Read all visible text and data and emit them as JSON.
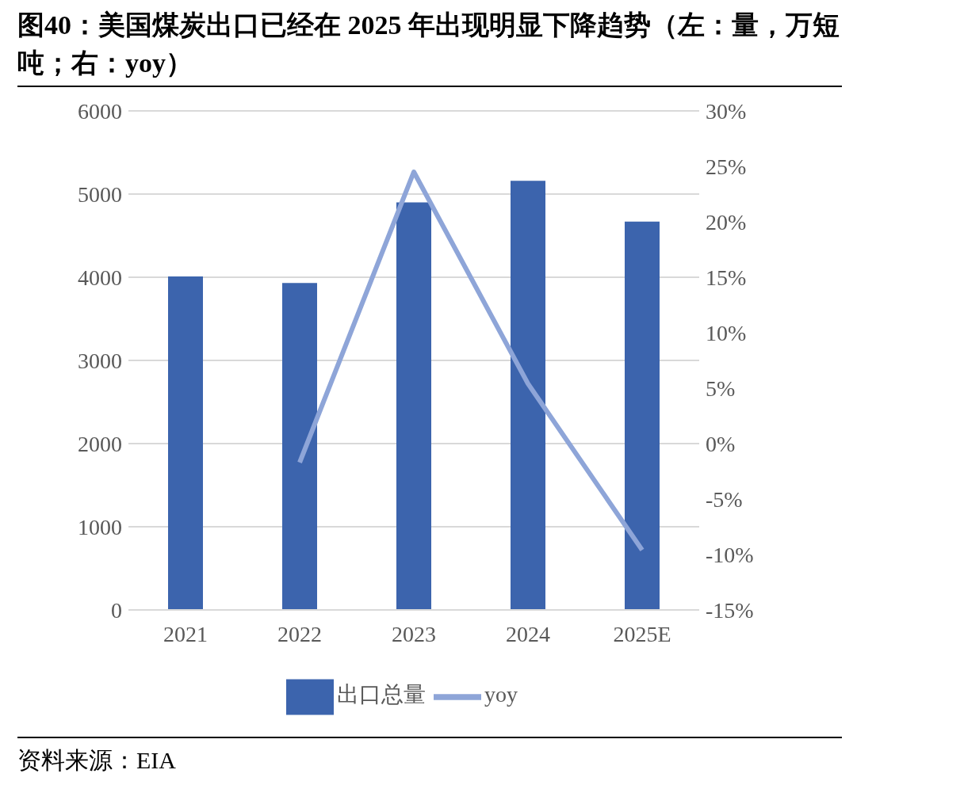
{
  "chart_data": {
    "type": "bar",
    "title": "图40：美国煤炭出口已经在 2025 年出现明显下降趋势（左：量，万短吨；右：yoy）",
    "categories": [
      "2021",
      "2022",
      "2023",
      "2024",
      "2025E"
    ],
    "series": [
      {
        "name": "出口总量",
        "color": "#3c64ad",
        "values": [
          4010,
          3930,
          4900,
          5160,
          4670
        ]
      },
      {
        "type": "line",
        "name": "yoy",
        "color": "#8ea5d8",
        "axis": "y2",
        "values": [
          null,
          -1.7,
          24.5,
          5.4,
          -9.6
        ]
      }
    ],
    "ylim": [
      0,
      6000
    ],
    "yticks": [
      0,
      1000,
      2000,
      3000,
      4000,
      5000,
      6000
    ],
    "y2lim": [
      -15,
      30
    ],
    "y2ticks": [
      {
        "value": -15,
        "label": "-15%"
      },
      {
        "value": -10,
        "label": "-10%"
      },
      {
        "value": -5,
        "label": "-5%"
      },
      {
        "value": 0,
        "label": "0%"
      },
      {
        "value": 5,
        "label": "5%"
      },
      {
        "value": 10,
        "label": "10%"
      },
      {
        "value": 15,
        "label": "15%"
      },
      {
        "value": 20,
        "label": "20%"
      },
      {
        "value": 25,
        "label": "25%"
      },
      {
        "value": 30,
        "label": "30%"
      }
    ],
    "grid": "y",
    "legend": "bottom",
    "marker": "none",
    "line_style": "solid",
    "annotations": [
      "资料来源：EIA"
    ]
  }
}
